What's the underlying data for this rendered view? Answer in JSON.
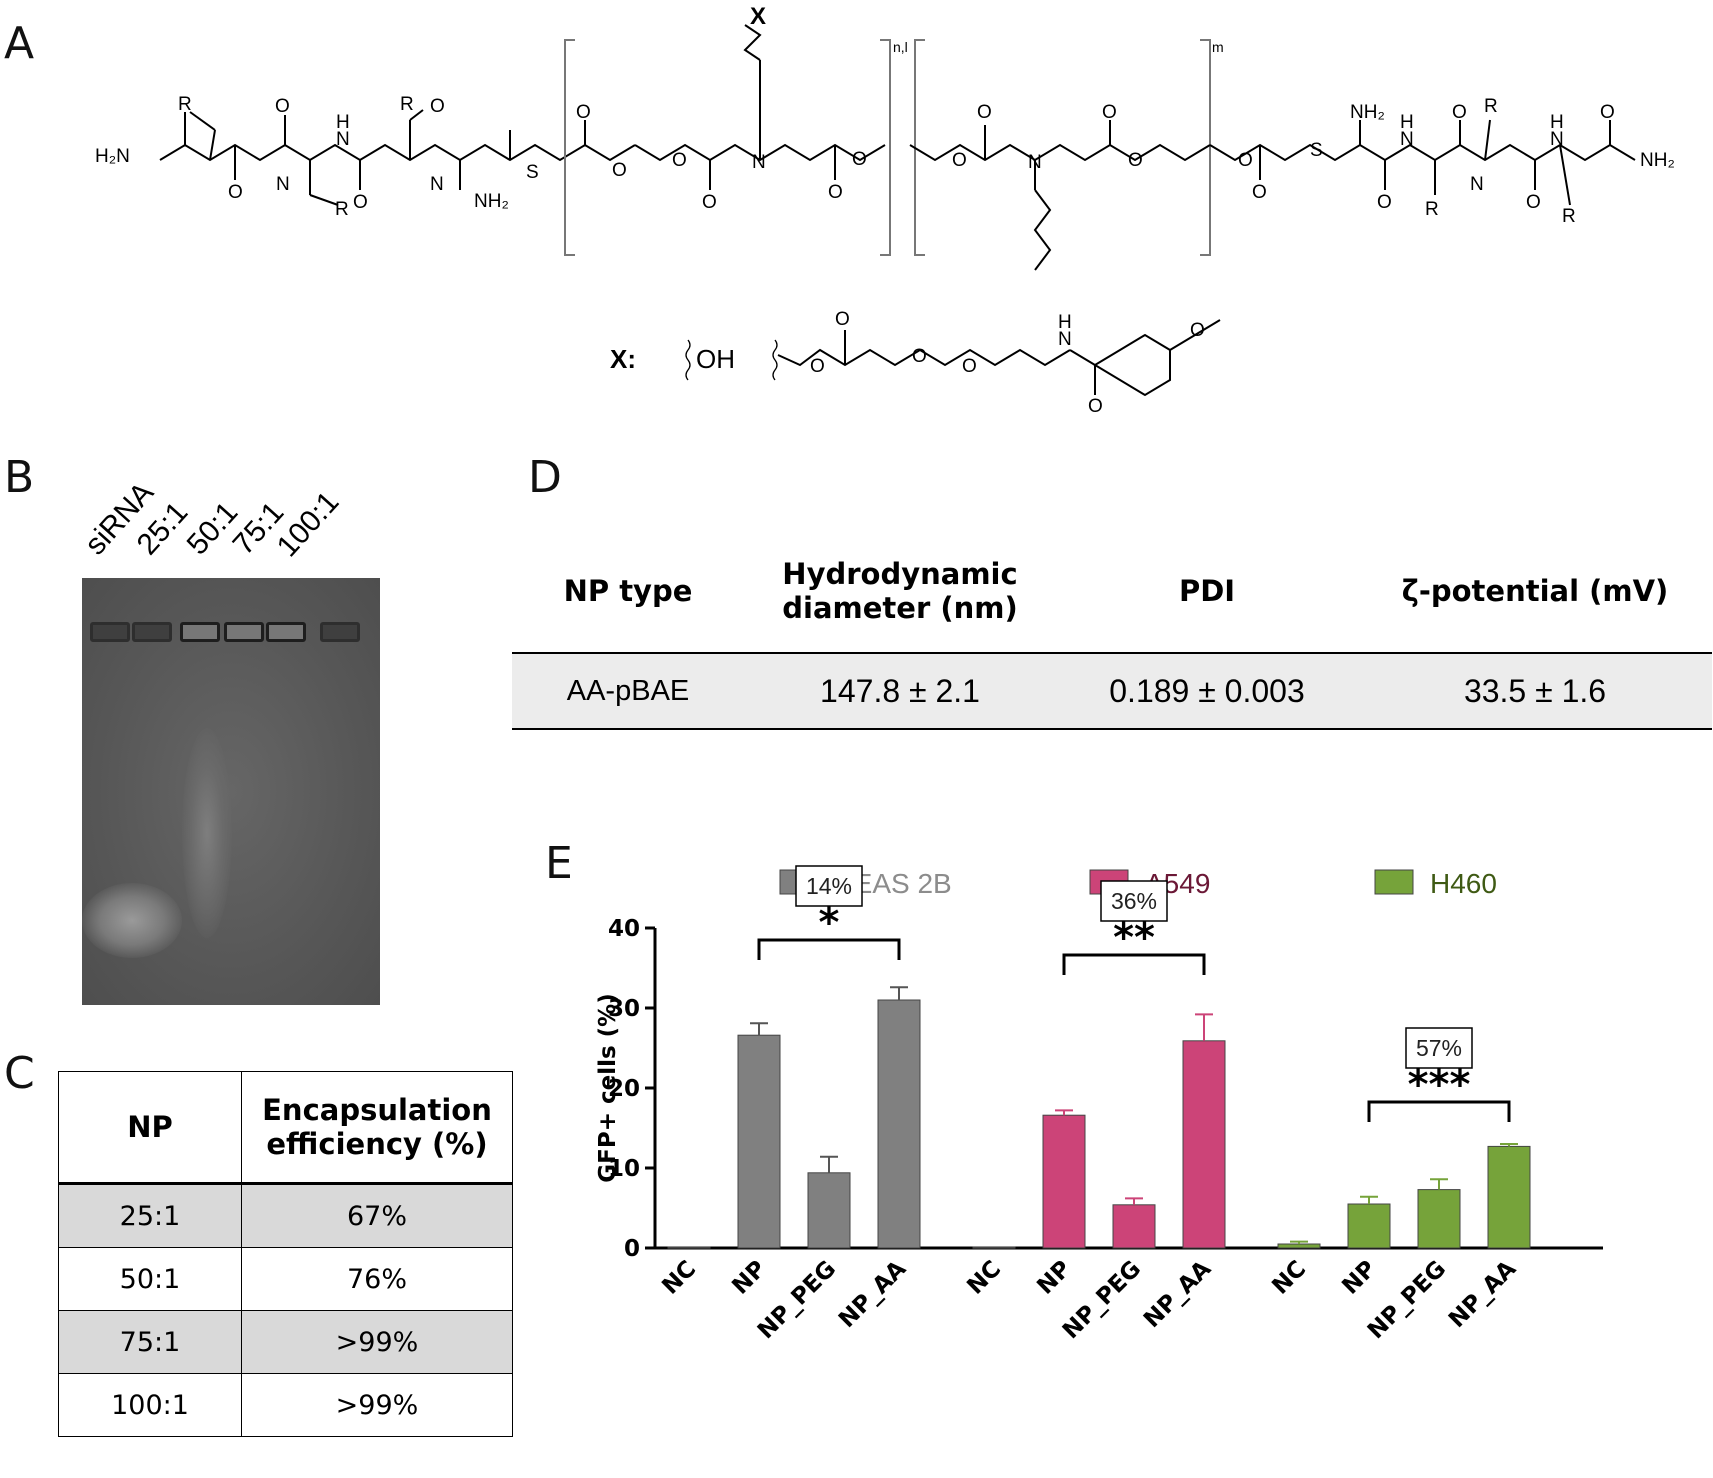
{
  "panels": {
    "a": "A",
    "b": "B",
    "c": "C",
    "d": "D",
    "e": "E"
  },
  "panel_a": {
    "x_label": "X",
    "x_legend": "X:",
    "oh": "OH",
    "subscripts": {
      "nl": "n,l",
      "m": "m"
    },
    "atoms": {
      "r": "R",
      "o": "O",
      "n": "N",
      "s": "S",
      "h": "H",
      "h2n": "H₂N",
      "nh2": "NH₂"
    }
  },
  "panel_b": {
    "lanes": [
      "siRNA",
      "25:1",
      "50:1",
      "75:1",
      "100:1"
    ]
  },
  "table_c": {
    "headers": [
      "NP",
      "Encapsulation efficiency (%)"
    ],
    "header_line2": [
      "",
      "efficiency (%)"
    ],
    "header_line1": [
      "NP",
      "Encapsulation"
    ],
    "rows": [
      {
        "np": "25:1",
        "ee": "67%"
      },
      {
        "np": "50:1",
        "ee": "76%"
      },
      {
        "np": "75:1",
        "ee": ">99%"
      },
      {
        "np": "100:1",
        "ee": ">99%"
      }
    ]
  },
  "table_d": {
    "headers": {
      "type": "NP type",
      "diam_1": "Hydrodynamic",
      "diam_2": "diameter (nm)",
      "pdi": "PDI",
      "zeta": "ζ-potential (mV)"
    },
    "row": {
      "type": "AA-pBAE",
      "diameter": "147.8 ± 2.1",
      "pdi": "0.189 ± 0.003",
      "zeta": "33.5 ± 1.6"
    }
  },
  "chart_data": {
    "type": "bar",
    "ylabel": "GFP+ cells (%)",
    "ylim": [
      0,
      40
    ],
    "yticks": [
      0,
      10,
      20,
      30,
      40
    ],
    "categories": [
      "NC",
      "NP",
      "NP_PEG",
      "NP_AA"
    ],
    "series": [
      {
        "name": "BEAS 2B",
        "color": "#808080",
        "label_color": "#8c8c8c",
        "values": [
          0.1,
          26.6,
          9.4,
          31.0
        ],
        "errors": [
          0.0,
          1.5,
          2.0,
          1.6
        ]
      },
      {
        "name": "A549",
        "color": "#cc4478",
        "label_color": "#6b1836",
        "values": [
          0.1,
          16.6,
          5.4,
          25.9
        ],
        "errors": [
          0.0,
          0.6,
          0.8,
          3.3
        ]
      },
      {
        "name": "H460",
        "color": "#76a33a",
        "label_color": "#3f5a14",
        "values": [
          0.5,
          5.5,
          7.3,
          12.7
        ],
        "errors": [
          0.3,
          0.9,
          1.3,
          0.3
        ]
      }
    ],
    "annotations": [
      {
        "group": "BEAS 2B",
        "box": "14%",
        "stars": "*"
      },
      {
        "group": "A549",
        "box": "36%",
        "stars": "**"
      },
      {
        "group": "H460",
        "box": "57%",
        "stars": "***"
      }
    ],
    "legend": "top",
    "grid": false
  }
}
